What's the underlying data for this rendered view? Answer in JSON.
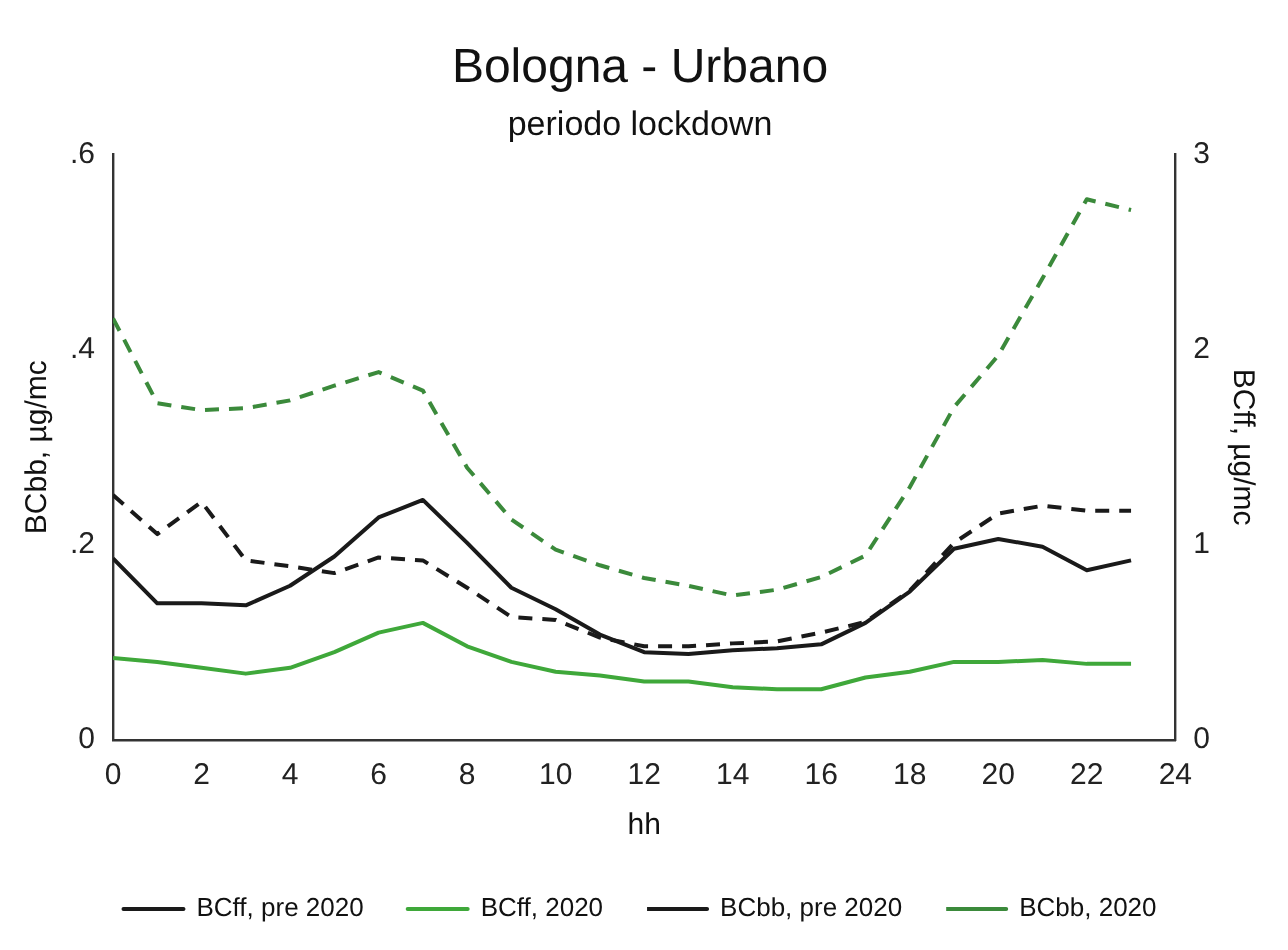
{
  "chart_data": {
    "type": "line",
    "title": "Bologna - Urbano",
    "subtitle": "periodo lockdown",
    "xlabel": "hh",
    "ylabel": "BCbb, µg/mc",
    "y2label": "BCff, µg/mc",
    "x": [
      0,
      1,
      2,
      3,
      4,
      5,
      6,
      7,
      8,
      9,
      10,
      11,
      12,
      13,
      14,
      15,
      16,
      17,
      18,
      19,
      20,
      21,
      22,
      23
    ],
    "xlim": [
      0,
      24
    ],
    "xticks": [
      0,
      2,
      4,
      6,
      8,
      10,
      12,
      14,
      16,
      18,
      20,
      22,
      24
    ],
    "ylim": [
      0,
      0.6
    ],
    "yticks": [
      0,
      {
        "value": 0.2,
        "label": ".2"
      },
      {
        "value": 0.4,
        "label": ".4"
      },
      {
        "value": 0.6,
        "label": ".6"
      }
    ],
    "y2lim": [
      0,
      3
    ],
    "y2ticks": [
      0,
      1,
      2,
      3
    ],
    "grid": false,
    "legend": "bottom",
    "marker": "none",
    "series": [
      {
        "name": "BCff, pre 2020",
        "color": "#1a1a1a",
        "axis": "y2",
        "line_style": "solid",
        "values": [
          0.93,
          0.7,
          0.7,
          0.69,
          0.79,
          0.94,
          1.14,
          1.23,
          1.01,
          0.78,
          0.67,
          0.54,
          0.45,
          0.44,
          0.46,
          0.47,
          0.49,
          0.6,
          0.76,
          0.98,
          1.03,
          0.99,
          0.87,
          0.92
        ]
      },
      {
        "name": "BCff, 2020",
        "color": "#3fa83a",
        "axis": "y2",
        "line_style": "solid",
        "values": [
          0.42,
          0.4,
          0.37,
          0.34,
          0.37,
          0.45,
          0.55,
          0.6,
          0.48,
          0.4,
          0.35,
          0.33,
          0.3,
          0.3,
          0.27,
          0.26,
          0.26,
          0.32,
          0.35,
          0.4,
          0.4,
          0.41,
          0.39,
          0.39
        ]
      },
      {
        "name": "BCbb, pre 2020",
        "color": "#1a1a1a",
        "axis": "y",
        "line_style": "dashed",
        "values": [
          0.251,
          0.211,
          0.244,
          0.184,
          0.178,
          0.171,
          0.187,
          0.184,
          0.156,
          0.126,
          0.123,
          0.105,
          0.096,
          0.096,
          0.099,
          0.101,
          0.11,
          0.121,
          0.153,
          0.202,
          0.232,
          0.24,
          0.235,
          0.235
        ]
      },
      {
        "name": "BCbb, 2020",
        "color": "#3b8a3b",
        "axis": "y",
        "line_style": "dashed",
        "values": [
          0.432,
          0.345,
          0.338,
          0.34,
          0.348,
          0.363,
          0.377,
          0.358,
          0.279,
          0.226,
          0.195,
          0.179,
          0.166,
          0.158,
          0.148,
          0.154,
          0.167,
          0.189,
          0.259,
          0.341,
          0.394,
          0.473,
          0.554,
          0.543
        ]
      }
    ]
  }
}
